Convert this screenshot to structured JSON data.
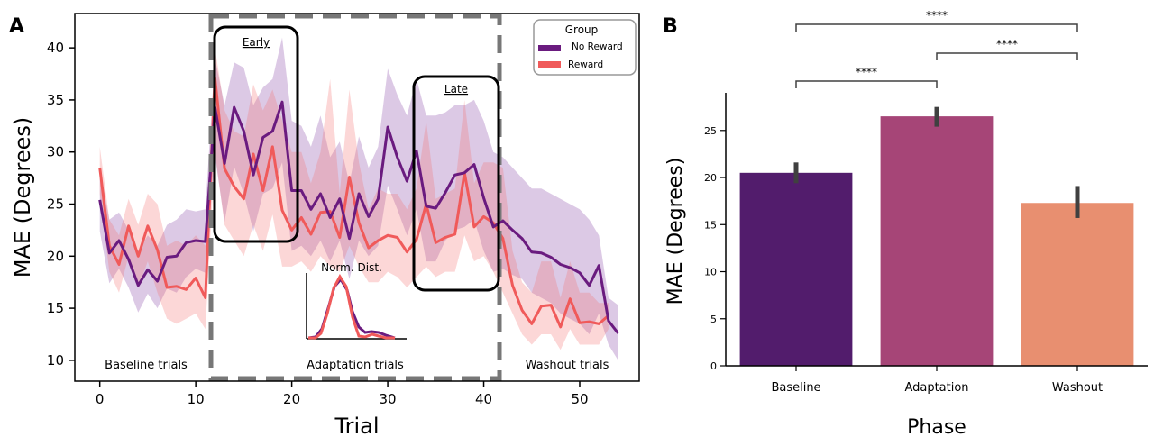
{
  "chart_data": [
    {
      "panel": "A",
      "type": "line",
      "xlabel": "Trial",
      "ylabel": "MAE (Degrees)",
      "xlim": [
        -2.6,
        56.2
      ],
      "ylim": [
        8.0,
        43.3
      ],
      "xticks": [
        0,
        10,
        20,
        30,
        40,
        50
      ],
      "yticks": [
        10,
        15,
        20,
        25,
        30,
        35,
        40
      ],
      "grid": false,
      "legend": {
        "title": "Group",
        "position": "top-right"
      },
      "series": [
        {
          "name": "No Reward",
          "color": "#6a1b7f",
          "x": [
            0,
            1,
            2,
            3,
            4,
            5,
            6,
            7,
            8,
            9,
            10,
            11,
            12,
            13,
            14,
            15,
            16,
            17,
            18,
            19,
            20,
            21,
            22,
            23,
            24,
            25,
            26,
            27,
            28,
            29,
            30,
            31,
            32,
            33,
            34,
            35,
            36,
            37,
            38,
            39,
            40,
            41,
            42,
            43,
            44,
            45,
            46,
            47,
            48,
            49,
            50,
            51,
            52,
            53,
            54
          ],
          "y": [
            25.4,
            20.3,
            21.5,
            19.7,
            17.2,
            18.7,
            17.6,
            19.9,
            20.0,
            21.3,
            21.5,
            21.4,
            34.3,
            28.9,
            34.3,
            32.0,
            27.8,
            31.4,
            32.0,
            34.8,
            26.3,
            26.3,
            24.5,
            26.0,
            23.7,
            25.5,
            21.7,
            26.0,
            23.8,
            25.5,
            32.4,
            29.5,
            27.2,
            30.1,
            24.8,
            24.6,
            26.1,
            27.8,
            28.0,
            28.8,
            25.6,
            22.8,
            23.4,
            22.5,
            21.7,
            20.4,
            20.3,
            19.9,
            19.2,
            18.9,
            18.4,
            17.2,
            19.1,
            13.8,
            12.6
          ],
          "ci_upper": [
            28.5,
            23.5,
            24.2,
            22.5,
            20.5,
            22.0,
            21.0,
            23.0,
            23.5,
            24.5,
            24.3,
            24.5,
            39.0,
            34.5,
            38.6,
            38.1,
            34.5,
            36.2,
            37.0,
            41.0,
            33.0,
            32.5,
            30.5,
            33.5,
            29.5,
            31.0,
            27.0,
            31.5,
            28.5,
            30.5,
            38.0,
            35.5,
            33.5,
            37.0,
            33.5,
            33.5,
            33.8,
            34.5,
            34.5,
            35.0,
            33.0,
            30.0,
            29.5,
            28.5,
            27.5,
            26.5,
            26.5,
            26.0,
            25.5,
            25.0,
            24.5,
            23.5,
            22.0,
            16.0,
            15.3
          ],
          "ci_lower": [
            22.4,
            17.4,
            18.8,
            17.0,
            14.6,
            16.4,
            15.0,
            16.9,
            16.5,
            18.0,
            18.8,
            18.4,
            29.6,
            23.3,
            28.6,
            26.0,
            22.4,
            26.0,
            26.5,
            29.0,
            20.5,
            21.0,
            20.0,
            21.5,
            19.5,
            21.5,
            17.8,
            21.5,
            20.0,
            21.0,
            26.8,
            24.5,
            22.0,
            24.5,
            19.5,
            19.5,
            21.5,
            22.5,
            22.8,
            23.5,
            20.5,
            18.5,
            18.8,
            18.2,
            17.8,
            16.5,
            16.0,
            15.5,
            14.5,
            14.0,
            13.5,
            12.5,
            14.5,
            11.5,
            10.0
          ]
        },
        {
          "name": "Reward",
          "color": "#f05a5a",
          "x": [
            0,
            1,
            2,
            3,
            4,
            5,
            6,
            7,
            8,
            9,
            10,
            11,
            12,
            13,
            14,
            15,
            16,
            17,
            18,
            19,
            20,
            21,
            22,
            23,
            24,
            25,
            26,
            27,
            28,
            29,
            30,
            31,
            32,
            33,
            34,
            35,
            36,
            37,
            38,
            39,
            40,
            41,
            42,
            43,
            44,
            45,
            46,
            47,
            48,
            49,
            50,
            51,
            52,
            53,
            54
          ],
          "y": [
            28.5,
            21.0,
            19.2,
            22.9,
            20.0,
            22.9,
            20.6,
            17.0,
            17.1,
            16.8,
            17.9,
            16.0,
            37.1,
            28.4,
            26.7,
            25.5,
            29.8,
            26.3,
            30.5,
            24.4,
            22.5,
            23.7,
            22.1,
            24.2,
            24.3,
            21.8,
            27.6,
            23.2,
            20.8,
            21.5,
            22.0,
            21.8,
            20.4,
            21.6,
            25.0,
            21.3,
            21.8,
            22.1,
            28.0,
            22.8,
            23.8,
            23.2,
            21.7,
            17.2,
            14.8,
            13.5,
            15.2,
            15.3,
            13.2,
            15.9,
            13.6,
            13.7,
            13.5,
            14.3,
            null
          ],
          "ci_upper": [
            30.5,
            23.5,
            22.0,
            25.5,
            23.0,
            26.0,
            25.0,
            21.0,
            21.5,
            21.0,
            22.0,
            21.0,
            40.0,
            34.0,
            32.0,
            31.5,
            36.5,
            34.0,
            36.0,
            33.0,
            30.0,
            30.0,
            27.0,
            30.0,
            37.0,
            26.0,
            36.0,
            29.0,
            24.5,
            26.5,
            26.0,
            26.0,
            24.5,
            26.5,
            33.0,
            25.5,
            26.0,
            26.5,
            35.0,
            27.0,
            29.0,
            29.0,
            28.5,
            20.5,
            17.5,
            16.5,
            19.5,
            19.5,
            16.0,
            19.5,
            16.5,
            16.5,
            15.5,
            15.5,
            null
          ],
          "ci_lower": [
            26.0,
            18.5,
            16.5,
            20.0,
            17.0,
            19.5,
            16.5,
            14.0,
            13.5,
            14.0,
            14.5,
            13.0,
            30.0,
            23.0,
            21.5,
            20.0,
            23.0,
            20.5,
            24.0,
            19.0,
            19.0,
            19.5,
            18.5,
            20.0,
            19.0,
            18.5,
            21.0,
            19.0,
            17.5,
            17.5,
            18.5,
            18.0,
            17.0,
            18.0,
            19.0,
            18.0,
            18.5,
            18.5,
            22.0,
            19.5,
            20.0,
            18.5,
            16.5,
            14.5,
            12.5,
            11.5,
            12.5,
            12.5,
            11.0,
            13.0,
            11.5,
            11.5,
            11.5,
            13.0,
            null
          ]
        }
      ],
      "annotations": {
        "early_box": "Early",
        "late_box": "Late",
        "inset_title": "Norm. Dist.",
        "region_labels": [
          "Baseline trials",
          "Adaptation trials",
          "Washout trials"
        ]
      }
    },
    {
      "panel": "B",
      "type": "bar",
      "xlabel": "Phase",
      "ylabel": "MAE (Degrees)",
      "categories": [
        "Baseline",
        "Adaptation",
        "Washout"
      ],
      "values": [
        20.5,
        26.5,
        17.3
      ],
      "error_low": [
        19.4,
        25.4,
        15.7
      ],
      "error_high": [
        21.6,
        27.5,
        19.1
      ],
      "colors": [
        "#521c6c",
        "#a64577",
        "#e88f70"
      ],
      "ylim": [
        0,
        29
      ],
      "yticks": [
        0,
        5,
        10,
        15,
        20,
        25
      ],
      "significance": [
        {
          "from": "Baseline",
          "to": "Adaptation",
          "label": "****"
        },
        {
          "from": "Adaptation",
          "to": "Washout",
          "label": "****"
        },
        {
          "from": "Baseline",
          "to": "Washout",
          "label": "****"
        }
      ]
    }
  ],
  "panels": {
    "a_letter": "A",
    "b_letter": "B"
  },
  "legend": {
    "title": "Group",
    "items": [
      "No Reward",
      "Reward"
    ]
  }
}
